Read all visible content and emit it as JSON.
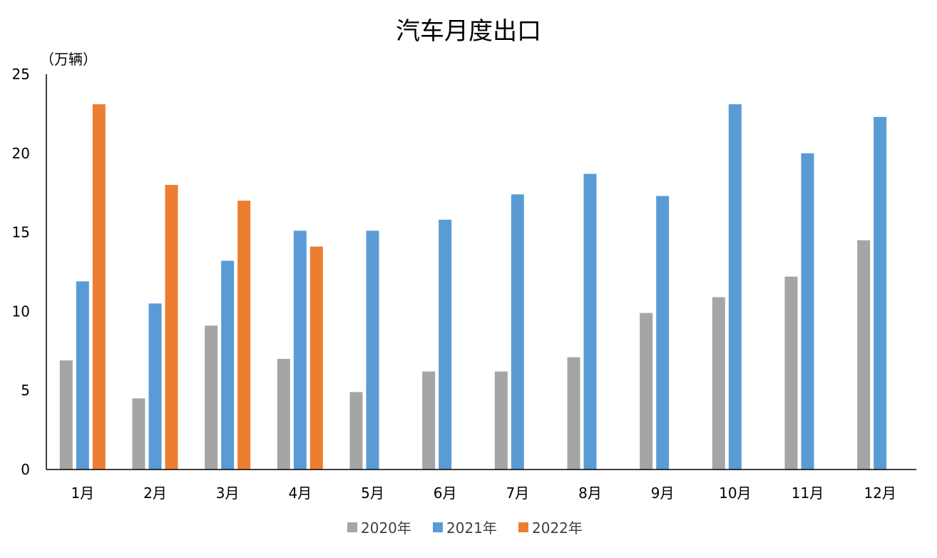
{
  "chart_data": {
    "type": "bar",
    "title": "汽车月度出口",
    "ylabel": "（万辆）",
    "xlabel": "",
    "ylim": [
      0,
      25
    ],
    "yticks": [
      0,
      5,
      10,
      15,
      20,
      25
    ],
    "grid": false,
    "legend_position": "bottom",
    "categories": [
      "1月",
      "2月",
      "3月",
      "4月",
      "5月",
      "6月",
      "7月",
      "8月",
      "9月",
      "10月",
      "11月",
      "12月"
    ],
    "series": [
      {
        "name": "2020年",
        "color": "#A5A5A5",
        "values": [
          6.9,
          4.5,
          9.1,
          7.0,
          4.9,
          6.2,
          6.2,
          7.1,
          9.9,
          10.9,
          12.2,
          14.5
        ]
      },
      {
        "name": "2021年",
        "color": "#5B9BD5",
        "values": [
          11.9,
          10.5,
          13.2,
          15.1,
          15.1,
          15.8,
          17.4,
          18.7,
          17.3,
          23.1,
          20.0,
          22.3
        ]
      },
      {
        "name": "2022年",
        "color": "#ED7D31",
        "values": [
          23.1,
          18.0,
          17.0,
          14.1,
          null,
          null,
          null,
          null,
          null,
          null,
          null,
          null
        ]
      }
    ]
  }
}
